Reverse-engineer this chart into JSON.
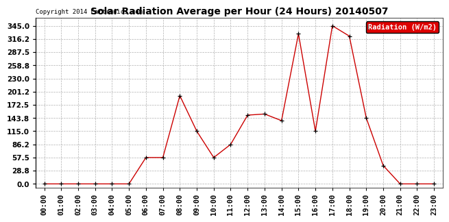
{
  "title": "Solar Radiation Average per Hour (24 Hours) 20140507",
  "copyright": "Copyright 2014 Cartronics.com",
  "legend_label": "Radiation (W/m2)",
  "hours": [
    "00:00",
    "01:00",
    "02:00",
    "03:00",
    "04:00",
    "05:00",
    "06:00",
    "07:00",
    "08:00",
    "09:00",
    "10:00",
    "11:00",
    "12:00",
    "13:00",
    "14:00",
    "15:00",
    "16:00",
    "17:00",
    "18:00",
    "19:00",
    "20:00",
    "21:00",
    "22:00",
    "23:00"
  ],
  "values": [
    0.0,
    0.0,
    0.0,
    0.0,
    0.0,
    0.0,
    57.5,
    57.5,
    192.5,
    115.0,
    57.5,
    86.2,
    150.0,
    152.5,
    138.0,
    327.5,
    115.0,
    345.0,
    322.5,
    143.8,
    40.0,
    0.0,
    0.0,
    0.0
  ],
  "line_color": "#cc0000",
  "marker": "+",
  "marker_color": "#000000",
  "marker_size": 4,
  "bg_color": "#ffffff",
  "grid_color": "#b0b0b0",
  "yticks": [
    0.0,
    28.8,
    57.5,
    86.2,
    115.0,
    143.8,
    172.5,
    201.2,
    230.0,
    258.8,
    287.5,
    316.2,
    345.0
  ],
  "ylim": [
    -8,
    362
  ],
  "title_fontsize": 10,
  "copyright_fontsize": 6.5,
  "tick_fontsize": 7.5,
  "legend_fontsize": 7.5,
  "legend_bg": "#dd0000",
  "legend_text_color": "#ffffff"
}
